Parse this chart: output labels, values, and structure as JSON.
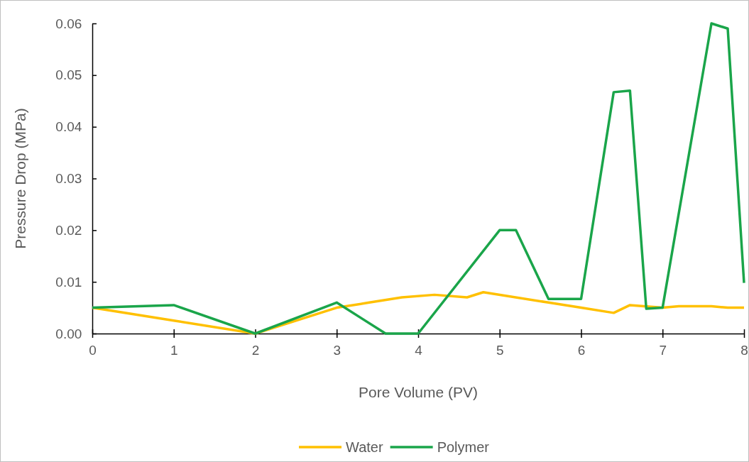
{
  "chart_data": {
    "type": "line",
    "xlabel": "Pore Volume (PV)",
    "ylabel": "Pressure Drop (MPa)",
    "xlim": [
      0,
      8
    ],
    "xticks": [
      0,
      1,
      2,
      3,
      4,
      5,
      6,
      7,
      8
    ],
    "ylim": [
      0,
      0.06
    ],
    "yticks": [
      {
        "value": 0,
        "label": "0.00"
      },
      {
        "value": 0.01,
        "label": "0.01"
      },
      {
        "value": 0.02,
        "label": "0.02"
      },
      {
        "value": 0.03,
        "label": "0.03"
      },
      {
        "value": 0.04,
        "label": "0.04"
      },
      {
        "value": 0.05,
        "label": "0.05"
      },
      {
        "value": 0.06,
        "label": "0.06"
      }
    ],
    "grid": false,
    "legend": "bottom",
    "marker": "none",
    "line_style": "solid",
    "series": [
      {
        "name": "Water",
        "color": "#ffc000",
        "x": [
          0,
          1,
          2,
          3,
          3.4,
          3.8,
          4.2,
          4.6,
          4.8,
          5.6,
          6,
          6.4,
          6.6,
          7,
          7.2,
          7.6,
          7.8,
          8
        ],
        "values": [
          0.005,
          0.0025,
          0,
          0.005,
          0.006,
          0.007,
          0.0075,
          0.007,
          0.008,
          0.006,
          0.005,
          0.004,
          0.0055,
          0.005,
          0.0053,
          0.0053,
          0.005,
          0.005
        ]
      },
      {
        "name": "Polymer",
        "color": "#1aa54a",
        "x": [
          0,
          1,
          2,
          3,
          3.6,
          4,
          5,
          5.2,
          5.6,
          6,
          6.4,
          6.6,
          6.8,
          7,
          7.6,
          7.8,
          8
        ],
        "values": [
          0.005,
          0.0055,
          0,
          0.006,
          0,
          0,
          0.02,
          0.02,
          0.0067,
          0.0067,
          0.0467,
          0.047,
          0.0048,
          0.005,
          0.06,
          0.059,
          0.0098
        ]
      }
    ]
  }
}
